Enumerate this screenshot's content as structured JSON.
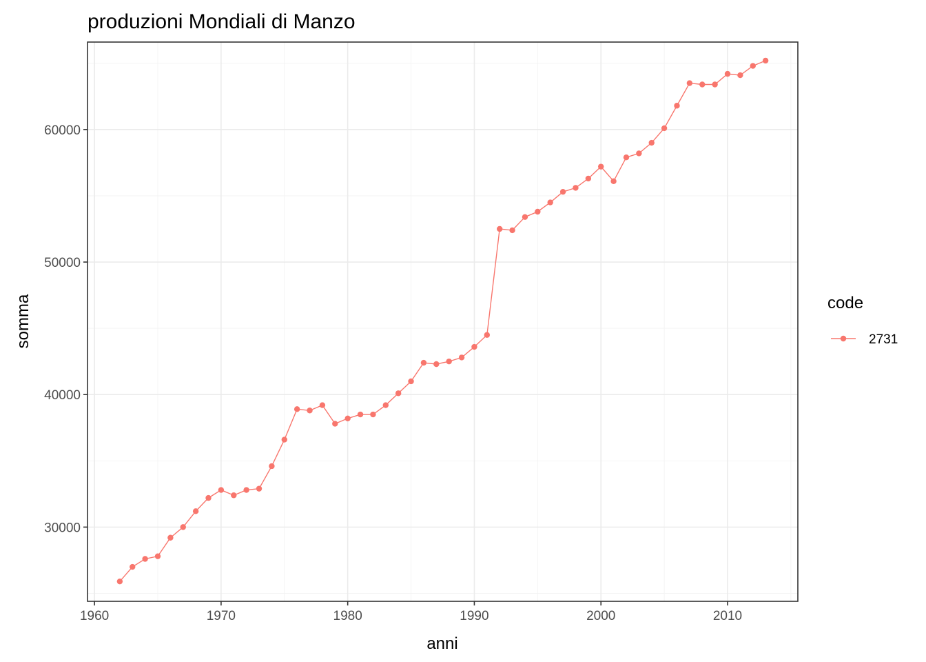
{
  "chart_data": {
    "type": "line",
    "title": "produzioni Mondiali di Manzo",
    "xlabel": "anni",
    "ylabel": "somma",
    "xlim": [
      1959.45,
      2015.55
    ],
    "ylim": [
      24400,
      66600
    ],
    "x_ticks": [
      1960,
      1970,
      1980,
      1990,
      2000,
      2010
    ],
    "x_tick_labels": [
      "1960",
      "1970",
      "1980",
      "1990",
      "2000",
      "2010"
    ],
    "y_ticks": [
      30000,
      40000,
      50000,
      60000
    ],
    "y_tick_labels": [
      "30000",
      "40000",
      "50000",
      "60000"
    ],
    "grid": true,
    "legend": {
      "title": "code",
      "position": "right",
      "entries": [
        "2731"
      ]
    },
    "series": [
      {
        "name": "2731",
        "color": "#f8766d",
        "x": [
          1962,
          1963,
          1964,
          1965,
          1966,
          1967,
          1968,
          1969,
          1970,
          1971,
          1972,
          1973,
          1974,
          1975,
          1976,
          1977,
          1978,
          1979,
          1980,
          1981,
          1982,
          1983,
          1984,
          1985,
          1986,
          1987,
          1988,
          1989,
          1990,
          1991,
          1992,
          1993,
          1994,
          1995,
          1996,
          1997,
          1998,
          1999,
          2000,
          2001,
          2002,
          2003,
          2004,
          2005,
          2006,
          2007,
          2008,
          2009,
          2010,
          2011,
          2012,
          2013
        ],
        "y": [
          25900,
          27000,
          27600,
          27800,
          29200,
          30000,
          31200,
          32200,
          32800,
          32400,
          32800,
          32900,
          34600,
          36600,
          38900,
          38800,
          39200,
          37800,
          38200,
          38500,
          38500,
          39200,
          40100,
          41000,
          42400,
          42300,
          42500,
          42800,
          43600,
          44500,
          52500,
          52400,
          53400,
          53800,
          54500,
          55300,
          55600,
          56300,
          57200,
          56100,
          57900,
          58200,
          59000,
          60100,
          61800,
          63500,
          63400,
          63400,
          64200,
          64100,
          64800,
          65200
        ]
      }
    ]
  }
}
